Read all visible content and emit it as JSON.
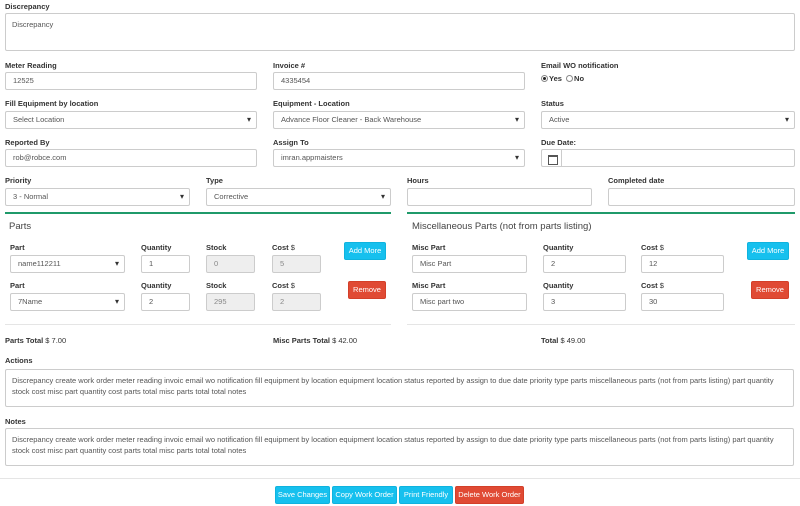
{
  "discrepancy": {
    "label": "Discrepancy",
    "value": "Discrepancy"
  },
  "meter_reading": {
    "label": "Meter Reading",
    "value": "12525"
  },
  "invoice": {
    "label": "Invoice #",
    "value": "4335454"
  },
  "email_wo": {
    "label": "Email WO notification",
    "yes_label": "Yes",
    "no_label": "No",
    "selected": "Yes"
  },
  "fill_equipment": {
    "label": "Fill Equipment by location",
    "value": "Select Location"
  },
  "equipment_location": {
    "label": "Equipment - Location",
    "value": "Advance Floor Cleaner - Back Warehouse"
  },
  "status": {
    "label": "Status",
    "value": "Active"
  },
  "reported_by": {
    "label": "Reported By",
    "value": "rob@robce.com"
  },
  "assign_to": {
    "label": "Assign To",
    "value": "imran.appmaisters"
  },
  "due_date": {
    "label": "Due Date:",
    "value": ""
  },
  "priority": {
    "label": "Priority",
    "value": "3 - Normal"
  },
  "type": {
    "label": "Type",
    "value": "Corrective"
  },
  "hours": {
    "label": "Hours",
    "value": ""
  },
  "completed_date": {
    "label": "Completed date",
    "value": ""
  },
  "parts": {
    "title": "Parts",
    "headers": {
      "part": "Part",
      "quantity": "Quantity",
      "stock": "Stock",
      "cost": "Cost",
      "currency": "$"
    },
    "add_more_label": "Add More",
    "remove_label": "Remove",
    "rows": [
      {
        "part": "name112211",
        "quantity": "1",
        "stock": "0",
        "cost": "5"
      },
      {
        "part": "7Name",
        "quantity": "2",
        "stock": "295",
        "cost": "2"
      }
    ]
  },
  "misc_parts": {
    "title": "Miscellaneous Parts (not from parts listing)",
    "headers": {
      "part": "Misc Part",
      "quantity": "Quantity",
      "cost": "Cost",
      "currency": "$"
    },
    "add_more_label": "Add More",
    "remove_label": "Remove",
    "rows": [
      {
        "part": "Misc Part",
        "quantity": "2",
        "cost": "12"
      },
      {
        "part": "Misc part two",
        "quantity": "3",
        "cost": "30"
      }
    ]
  },
  "totals": {
    "parts_label": "Parts Total",
    "parts_value": "$ 7.00",
    "misc_label": "Misc Parts Total",
    "misc_value": "$ 42.00",
    "total_label": "Total",
    "total_value": "$ 49.00"
  },
  "actions": {
    "label": "Actions",
    "value": "Discrepancy create work order meter reading invoic email wo notification fill equipment by location equipment location status reported by assign to due date priority type parts miscellaneous parts (not from parts listing) part quantity stock cost misc part quantity cost parts total misc parts total total notes"
  },
  "notes": {
    "label": "Notes",
    "value": "Discrepancy create work order meter reading invoic email wo notification fill equipment by location equipment location status reported by assign to due date priority type parts miscellaneous parts (not from parts listing) part quantity stock cost misc part quantity cost parts total misc parts total total notes"
  },
  "footer_buttons": {
    "save": "Save Changes",
    "copy": "Copy Work Order",
    "print": "Print Friendly",
    "delete": "Delete Work Order"
  },
  "colors": {
    "info": "#16c0ee",
    "danger": "#e04a34",
    "section_line": "#1f9a6a"
  }
}
